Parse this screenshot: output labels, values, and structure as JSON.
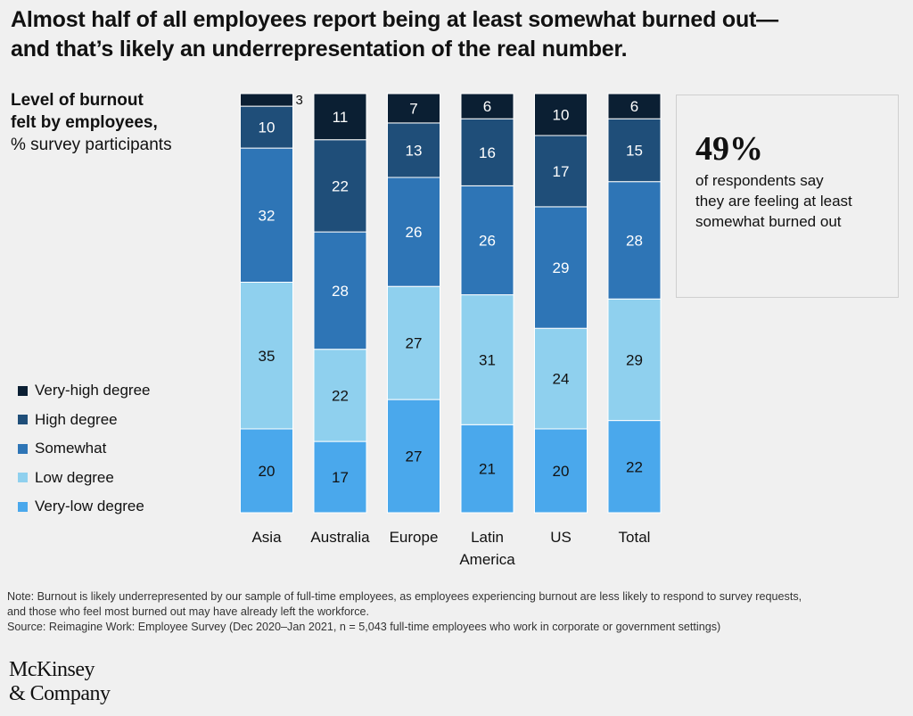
{
  "headline": {
    "line1": "Almost half of all employees report being at least somewhat burned out—",
    "line2": "and that’s likely an underrepresentation of the real number."
  },
  "subtitle": {
    "bold_line1": "Level of burnout",
    "bold_line2": "felt by employees,",
    "light": "% survey participants"
  },
  "legend": [
    {
      "label": "Very-high degree",
      "color": "#0b1f33"
    },
    {
      "label": "High degree",
      "color": "#1f4e79"
    },
    {
      "label": "Somewhat",
      "color": "#2e75b6"
    },
    {
      "label": "Low degree",
      "color": "#8fd0ee"
    },
    {
      "label": "Very-low degree",
      "color": "#4aa8ec"
    }
  ],
  "callout": {
    "value": "49%",
    "text": "of respondents say they are feeling at least somewhat burned out"
  },
  "chart_data": {
    "type": "bar",
    "stacked": true,
    "categories": [
      "Asia",
      "Australia",
      "Europe",
      "Latin America",
      "US",
      "Total"
    ],
    "category_lines": [
      [
        "Asia"
      ],
      [
        "Australia"
      ],
      [
        "Europe"
      ],
      [
        "Latin",
        "America"
      ],
      [
        "US"
      ],
      [
        "Total"
      ]
    ],
    "series": [
      {
        "name": "Very-low degree",
        "color": "#4aa8ec",
        "values": [
          20,
          17,
          27,
          21,
          20,
          22
        ]
      },
      {
        "name": "Low degree",
        "color": "#8fd0ee",
        "values": [
          35,
          22,
          27,
          31,
          24,
          29
        ]
      },
      {
        "name": "Somewhat",
        "color": "#2e75b6",
        "values": [
          32,
          28,
          26,
          26,
          29,
          28
        ]
      },
      {
        "name": "High degree",
        "color": "#1f4e79",
        "values": [
          10,
          22,
          13,
          16,
          17,
          15
        ]
      },
      {
        "name": "Very-high degree",
        "color": "#0b1f33",
        "values": [
          3,
          11,
          7,
          6,
          10,
          6
        ]
      }
    ],
    "ylim": [
      0,
      100
    ],
    "grid": false,
    "legend_position": "left"
  },
  "footnote": {
    "note_line1": "Note: Burnout is likely underrepresented by our sample of full-time employees, as employees experiencing burnout are less likely to respond to survey requests,",
    "note_line2": "and those who feel most burned out may have already left the workforce.",
    "source": "Source: Reimagine Work: Employee Survey (Dec 2020–Jan 2021, n = 5,043 full-time employees who work in corporate or government settings)"
  },
  "logo": {
    "line1": "McKinsey",
    "line2": "& Company"
  }
}
